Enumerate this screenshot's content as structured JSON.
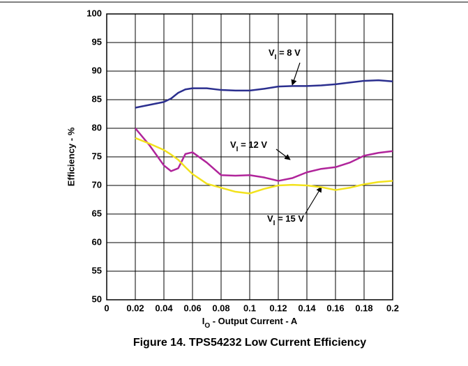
{
  "chart_data": {
    "type": "line",
    "caption": "Figure 14. TPS54232 Low Current Efficiency",
    "x_label": {
      "main": "I",
      "sub": "O",
      "rest": " - Output Current - A"
    },
    "y_label": "Efficiency - %",
    "x": [
      0.02,
      0.03,
      0.04,
      0.045,
      0.05,
      0.055,
      0.06,
      0.07,
      0.08,
      0.09,
      0.1,
      0.11,
      0.12,
      0.13,
      0.14,
      0.15,
      0.16,
      0.17,
      0.18,
      0.19,
      0.2
    ],
    "series": [
      {
        "color": "#2b2f8f",
        "values": [
          83.6,
          84.1,
          84.6,
          85.2,
          86.2,
          86.8,
          87.0,
          87.0,
          86.7,
          86.6,
          86.6,
          86.9,
          87.3,
          87.4,
          87.4,
          87.5,
          87.7,
          88.0,
          88.3,
          88.4,
          88.2
        ]
      },
      {
        "color": "#b0249a",
        "values": [
          80.0,
          77.0,
          73.5,
          72.5,
          73.0,
          75.5,
          75.8,
          74.0,
          71.8,
          71.7,
          71.8,
          71.4,
          70.8,
          71.3,
          72.3,
          72.9,
          73.2,
          74.0,
          75.2,
          75.7,
          76.0
        ]
      },
      {
        "color": "#f2e21c",
        "values": [
          78.3,
          77.3,
          76.2,
          75.4,
          74.5,
          73.2,
          72.0,
          70.3,
          69.6,
          68.9,
          68.6,
          69.4,
          70.0,
          70.1,
          70.0,
          69.7,
          69.2,
          69.6,
          70.2,
          70.6,
          70.8
        ]
      }
    ],
    "annotations": [
      {
        "main": "V",
        "sub": "I",
        "rest": " = 8 V"
      },
      {
        "main": "V",
        "sub": "I",
        "rest": " = 12 V"
      },
      {
        "main": "V",
        "sub": "I",
        "rest": " = 15 V"
      }
    ],
    "xlim": [
      0,
      0.2
    ],
    "xticks": [
      0,
      0.02,
      0.04,
      0.06,
      0.08,
      0.1,
      0.12,
      0.14,
      0.16,
      0.18,
      0.2
    ],
    "ylim": [
      50,
      100
    ],
    "yticks": [
      50,
      55,
      60,
      65,
      70,
      75,
      80,
      85,
      90,
      95,
      100
    ],
    "grid": true
  }
}
